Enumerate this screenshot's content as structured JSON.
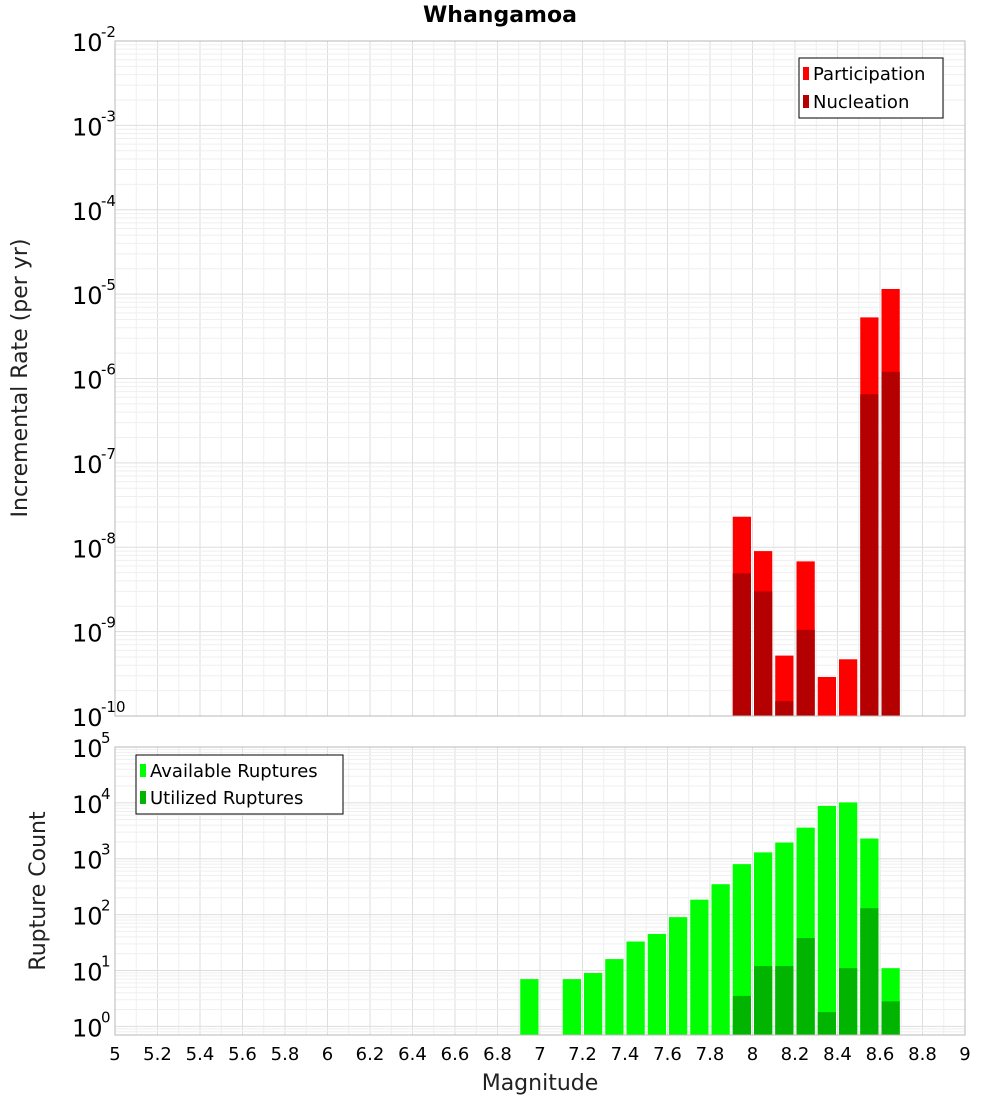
{
  "chart_data": [
    {
      "type": "bar",
      "title": "Whangamoa",
      "ylabel": "Incremental Rate (per yr)",
      "xlabel": "",
      "yscale": "log",
      "ylim": [
        1e-10,
        0.01
      ],
      "xlim": [
        5,
        9
      ],
      "bar_width": 0.1,
      "legend_position": "top-right",
      "series": [
        {
          "name": "Participation",
          "color": "#ff0000",
          "x": [
            7.95,
            8.05,
            8.15,
            8.25,
            8.35,
            8.45,
            8.55,
            8.65
          ],
          "values": [
            2.3e-08,
            9e-09,
            5.2e-10,
            6.8e-09,
            2.9e-10,
            4.7e-10,
            5.3e-06,
            1.15e-05
          ]
        },
        {
          "name": "Nucleation",
          "color": "#b40000",
          "x": [
            7.95,
            8.05,
            8.15,
            8.25,
            8.55,
            8.65
          ],
          "values": [
            4.9e-09,
            3e-09,
            1.5e-10,
            1.05e-09,
            6.5e-07,
            1.2e-06
          ]
        }
      ]
    },
    {
      "type": "bar",
      "title": "",
      "ylabel": "Rupture Count",
      "xlabel": "Magnitude",
      "yscale": "log",
      "ylim": [
        0.7,
        100000.0
      ],
      "xlim": [
        5,
        9
      ],
      "bar_width": 0.1,
      "legend_position": "top-left",
      "x_ticks": [
        "5",
        "5.2",
        "5.4",
        "5.6",
        "5.8",
        "6",
        "6.2",
        "6.4",
        "6.6",
        "6.8",
        "7",
        "7.2",
        "7.4",
        "7.6",
        "7.8",
        "8",
        "8.2",
        "8.4",
        "8.6",
        "8.8",
        "9"
      ],
      "series": [
        {
          "name": "Available Ruptures",
          "color": "#00ff00",
          "x": [
            6.95,
            7.15,
            7.25,
            7.35,
            7.45,
            7.55,
            7.65,
            7.75,
            7.85,
            7.95,
            8.05,
            8.15,
            8.25,
            8.35,
            8.45,
            8.55,
            8.65
          ],
          "values": [
            7,
            7,
            9,
            16,
            33,
            45,
            90,
            185,
            350,
            800,
            1300,
            1950,
            3600,
            8800,
            10200,
            2300,
            11
          ]
        },
        {
          "name": "Utilized Ruptures",
          "color": "#00b400",
          "x": [
            7.95,
            8.05,
            8.15,
            8.25,
            8.35,
            8.45,
            8.55,
            8.65
          ],
          "values": [
            3.5,
            12,
            12,
            38,
            1.8,
            11,
            130,
            2.8
          ]
        }
      ]
    }
  ]
}
